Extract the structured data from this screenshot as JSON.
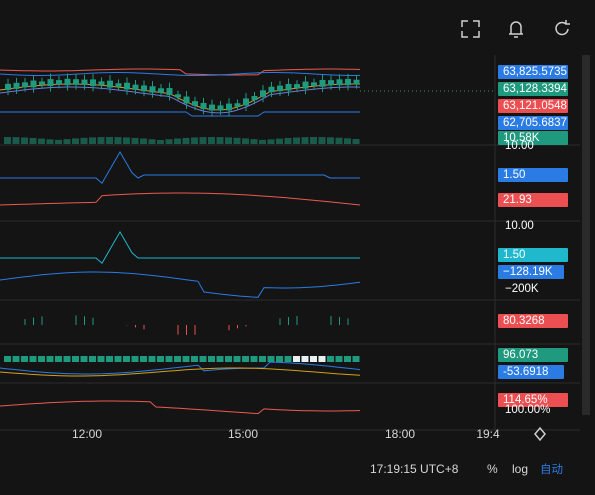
{
  "price_labels": [
    {
      "text": "63,825.5735",
      "color": "#2a7be4"
    },
    {
      "text": "63,128.3394",
      "color": "#1f9a7f"
    },
    {
      "text": "63,121.0548",
      "color": "#ec4f52"
    },
    {
      "text": "62,705.6837",
      "color": "#2a7be4"
    },
    {
      "text": "10.58K",
      "color": "#1f9a7f"
    },
    {
      "text": "1.50",
      "color": "#2a7be4"
    },
    {
      "text": "21.93",
      "color": "#ec4f52"
    },
    {
      "text": "1.50",
      "color": "#20b8cc"
    },
    {
      "text": "−128.19K",
      "color": "#2a7be4"
    },
    {
      "text": "80.3268",
      "color": "#ec4f52"
    },
    {
      "text": "96.073",
      "color": "#1f9a7f"
    },
    {
      "text": "-53.6918",
      "color": "#2a7be4"
    },
    {
      "text": "114.65%",
      "color": "#ec4f52"
    }
  ],
  "plain_labels": [
    "10.00",
    "10.00",
    "−200K",
    "100.00%"
  ],
  "time_axis": [
    "12:00",
    "15:00",
    "18:00",
    "19:4"
  ],
  "footer": {
    "clock": "17:19:15 UTC+8",
    "percent": "%",
    "log": "log",
    "auto": "自动"
  }
}
